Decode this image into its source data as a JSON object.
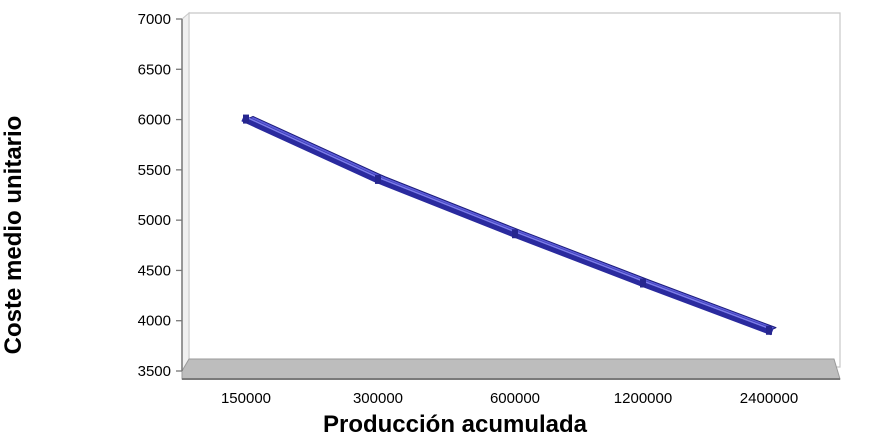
{
  "chart_data": {
    "type": "line",
    "title": "",
    "xlabel": "Producción acumulada",
    "ylabel": "Coste medio unitario",
    "categories": [
      "150000",
      "300000",
      "600000",
      "1200000",
      "2400000"
    ],
    "series": [
      {
        "values": [
          6000,
          5400,
          4860,
          4370,
          3900
        ],
        "color": "#2a2a9e"
      }
    ],
    "ylim": [
      3500,
      7000
    ],
    "yticks": [
      "3500",
      "4000",
      "4500",
      "5000",
      "5500",
      "6000",
      "6500",
      "7000"
    ],
    "grid": false,
    "legend": "none",
    "style": "3d"
  }
}
